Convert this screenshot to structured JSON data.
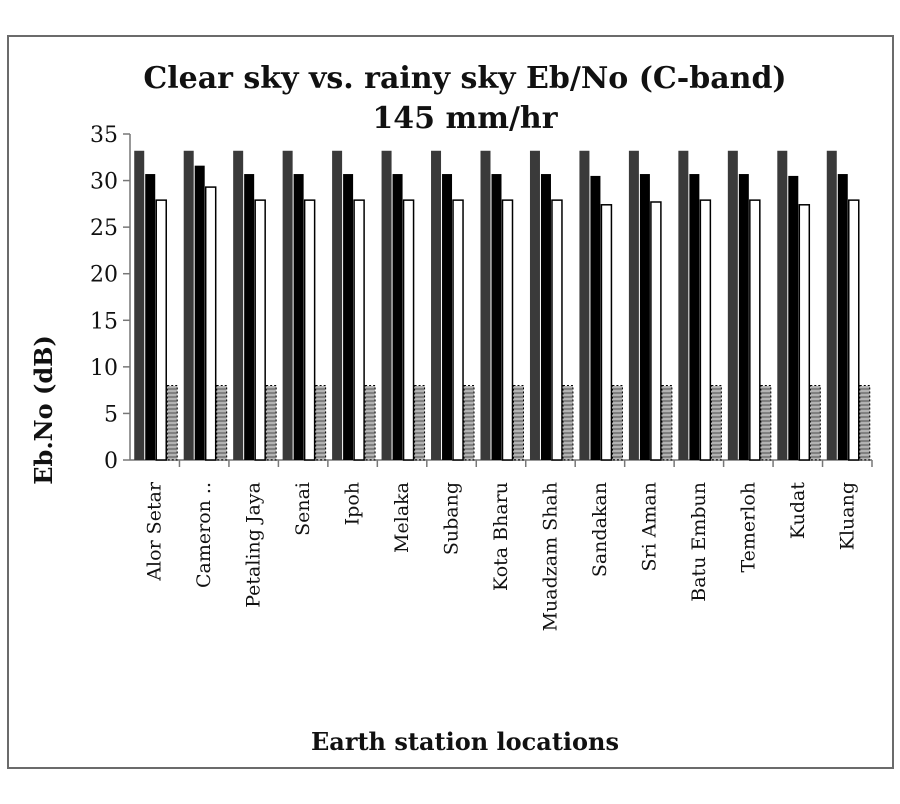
{
  "chart_data": {
    "type": "bar",
    "title_line1": "Clear sky vs. rainy sky Eb/No (C-band)",
    "title_line2": "145 mm/hr",
    "xlabel": "Earth station locations",
    "ylabel": "Eb.No (dB)",
    "ylim": [
      0,
      35
    ],
    "yticks": [
      0,
      5,
      10,
      15,
      20,
      25,
      30,
      35
    ],
    "grid": false,
    "legend": "none",
    "categories": [
      "Alor Setar",
      "Cameron ..",
      "Petaling Jaya",
      "Senai",
      "Ipoh",
      "Melaka",
      "Subang",
      "Kota Bharu",
      "Muadzam Shah",
      "Sandakan",
      "Sri Aman",
      "Batu Embun",
      "Temerloh",
      "Kudat",
      "Kluang"
    ],
    "series": [
      {
        "values": [
          33.2,
          33.2,
          33.2,
          33.2,
          33.2,
          33.2,
          33.2,
          33.2,
          33.2,
          33.2,
          33.2,
          33.2,
          33.2,
          33.2,
          33.2
        ],
        "color": "#3a3a3a",
        "pattern": "solid"
      },
      {
        "values": [
          30.7,
          31.6,
          30.7,
          30.7,
          30.7,
          30.7,
          30.7,
          30.7,
          30.7,
          30.5,
          30.7,
          30.7,
          30.7,
          30.5,
          30.7
        ],
        "color": "#000000",
        "pattern": "solid"
      },
      {
        "values": [
          27.9,
          29.3,
          27.9,
          27.9,
          27.9,
          27.9,
          27.9,
          27.9,
          27.9,
          27.4,
          27.7,
          27.9,
          27.9,
          27.4,
          27.9
        ],
        "color": "#ffffff",
        "pattern": "outline"
      },
      {
        "values": [
          8,
          8,
          8,
          8,
          8,
          8,
          8,
          8,
          8,
          8,
          8,
          8,
          8,
          8,
          8
        ],
        "color": "#ffffff",
        "pattern": "dashed"
      }
    ]
  }
}
